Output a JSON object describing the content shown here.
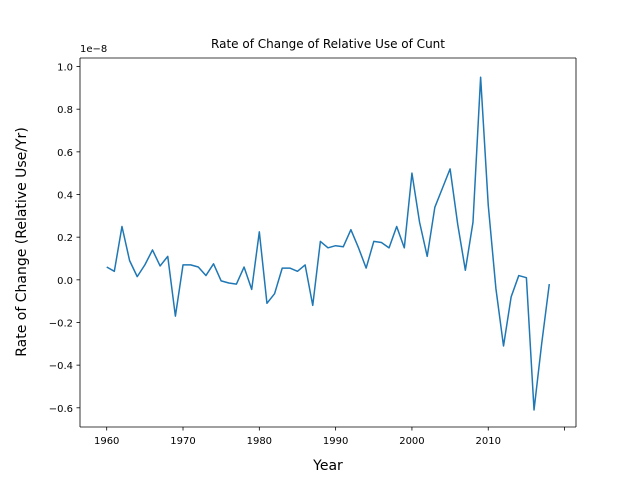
{
  "chart_data": {
    "type": "line",
    "title": "Rate of Change of Relative Use of Cunt",
    "xlabel": "Year",
    "ylabel": "Rate of Change (Relative Use/Yr)",
    "y_offset_label": "1e−8",
    "xlim": [
      1956.5,
      2021.5
    ],
    "ylim": [
      -6.9e-09,
      1.04e-08
    ],
    "x_ticks": [
      1960,
      1970,
      1980,
      1990,
      2000,
      2010
    ],
    "x_extra_ticks": [
      2020
    ],
    "y_ticks": [
      -0.6,
      -0.4,
      -0.2,
      0.0,
      0.2,
      0.4,
      0.6,
      0.8,
      1.0
    ],
    "y_tick_labels": [
      "−0.6",
      "−0.4",
      "−0.2",
      "0.0",
      "0.2",
      "0.4",
      "0.6",
      "0.8",
      "1.0"
    ],
    "y_scale": 1e-08,
    "grid": false,
    "color": "#1f77b4",
    "series": [
      {
        "x": [
          1960,
          1961,
          1962,
          1963,
          1964,
          1965,
          1966,
          1967,
          1968,
          1969,
          1970,
          1971,
          1972,
          1973,
          1974,
          1975,
          1976,
          1977,
          1978,
          1979,
          1980,
          1981,
          1982,
          1983,
          1984,
          1985,
          1986,
          1987,
          1988,
          1989,
          1990,
          1991,
          1992,
          1993,
          1994,
          1995,
          1996,
          1997,
          1998,
          1999,
          2000,
          2001,
          2002,
          2003,
          2004,
          2005,
          2006,
          2007,
          2008,
          2009,
          2010,
          2011,
          2012,
          2013,
          2014,
          2015,
          2016,
          2017,
          2018
        ],
        "values": [
          6e-10,
          4e-10,
          2.5e-09,
          9e-10,
          1.5e-10,
          7e-10,
          1.4e-09,
          6.5e-10,
          1.1e-09,
          -1.7e-09,
          7e-10,
          7e-10,
          6e-10,
          2e-10,
          7.5e-10,
          -5e-11,
          -1.5e-10,
          -2e-10,
          6e-10,
          -4.5e-10,
          2.25e-09,
          -1.1e-09,
          -6.5e-10,
          5.5e-10,
          5.5e-10,
          4e-10,
          7e-10,
          -1.2e-09,
          1.8e-09,
          1.5e-09,
          1.6e-09,
          1.55e-09,
          2.35e-09,
          1.5e-09,
          5.5e-10,
          1.8e-09,
          1.75e-09,
          1.5e-09,
          2.5e-09,
          1.5e-09,
          5e-09,
          2.7e-09,
          1.1e-09,
          3.4e-09,
          4.3e-09,
          5.2e-09,
          2.6e-09,
          4.5e-10,
          2.7e-09,
          9.5e-09,
          3.5e-09,
          -4e-10,
          -3.1e-09,
          -8e-10,
          2e-10,
          1e-10,
          -6.1e-09,
          -3e-09,
          -2e-10
        ]
      }
    ]
  }
}
